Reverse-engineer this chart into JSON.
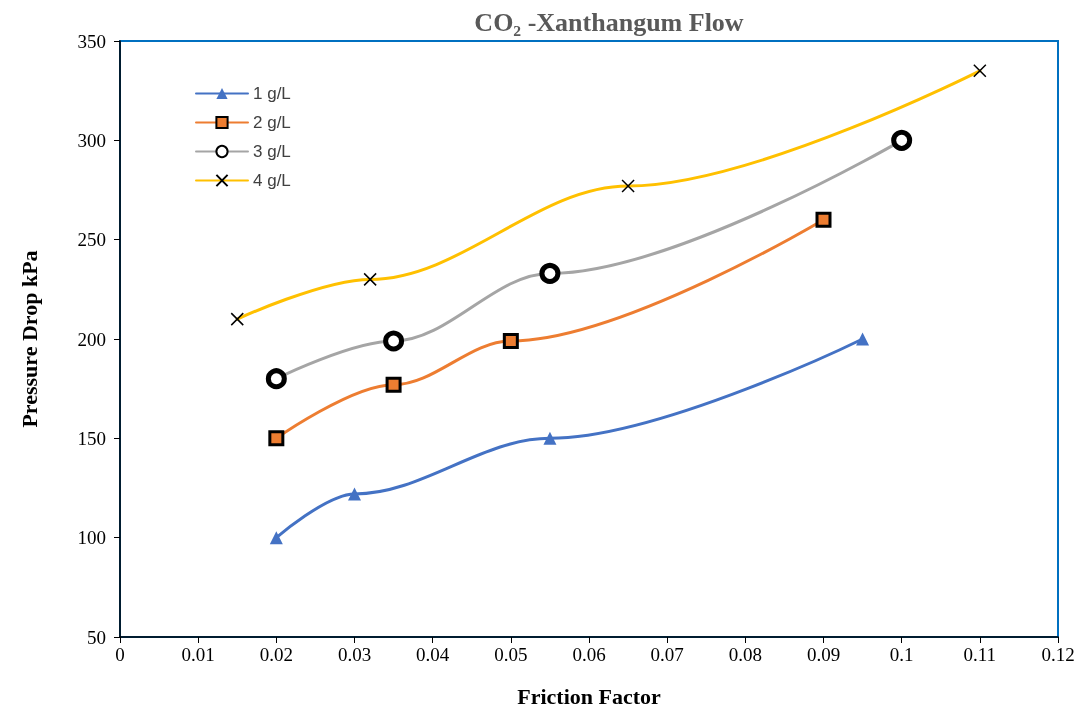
{
  "chart_data": {
    "type": "line",
    "title": "CO₂ -Xanthangum Flow",
    "xlabel": "Friction Factor",
    "ylabel": "Pressure Drop kPa",
    "xlim": [
      0,
      0.12
    ],
    "xticks": [
      0,
      0.01,
      0.02,
      0.03,
      0.04,
      0.05,
      0.06,
      0.07,
      0.08,
      0.09,
      0.1,
      0.11,
      0.12
    ],
    "ylim": [
      50,
      350
    ],
    "yticks": [
      50,
      100,
      150,
      200,
      250,
      300,
      350
    ],
    "grid": false,
    "legend": "top left",
    "series": [
      {
        "name": "1 g/L",
        "color": "#4472c4",
        "marker": "triangle",
        "x": [
          0.02,
          0.03,
          0.055,
          0.095
        ],
        "values": [
          100,
          122,
          150,
          200
        ]
      },
      {
        "name": "2 g/L",
        "color": "#ed7d31",
        "marker": "square",
        "x": [
          0.02,
          0.035,
          0.05,
          0.09
        ],
        "values": [
          150,
          177,
          199,
          260
        ]
      },
      {
        "name": "3 g/L",
        "color": "#a5a5a5",
        "marker": "circle",
        "x": [
          0.02,
          0.035,
          0.055,
          0.1
        ],
        "values": [
          180,
          199,
          233,
          300
        ]
      },
      {
        "name": "4 g/L",
        "color": "#ffc000",
        "marker": "cross",
        "x": [
          0.015,
          0.032,
          0.065,
          0.11
        ],
        "values": [
          210,
          230,
          277,
          335
        ]
      }
    ]
  }
}
